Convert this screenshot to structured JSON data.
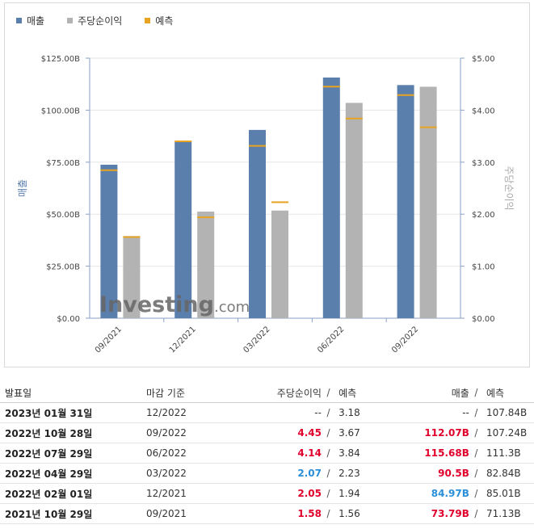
{
  "legend": [
    {
      "label": "매출",
      "color": "#5b7fad"
    },
    {
      "label": "주당순이익",
      "color": "#b3b3b3"
    },
    {
      "label": "예측",
      "color": "#e8a420"
    }
  ],
  "chart_data": {
    "type": "bar",
    "categories": [
      "09/2021",
      "12/2021",
      "03/2022",
      "06/2022",
      "09/2022"
    ],
    "series": [
      {
        "name": "매출",
        "axis": "left",
        "values": [
          73.79,
          84.97,
          90.5,
          115.68,
          112.07
        ],
        "forecast": [
          71.13,
          85.01,
          82.84,
          111.3,
          107.24
        ],
        "color": "#5b7fad"
      },
      {
        "name": "주당순이익",
        "axis": "right",
        "values": [
          1.58,
          2.05,
          2.07,
          4.14,
          4.45
        ],
        "forecast": [
          1.56,
          1.94,
          2.23,
          3.84,
          3.67
        ],
        "color": "#b3b3b3"
      }
    ],
    "forecast_color": "#e8a420",
    "ylabel_left": "매출",
    "ylabel_right": "주당순이익",
    "ylim_left": [
      0,
      125
    ],
    "ylim_right": [
      0,
      5
    ],
    "yticks_left": [
      "$0.00",
      "$25.00B",
      "$50.00B",
      "$75.00B",
      "$100.00B",
      "$125.00B"
    ],
    "yticks_right": [
      "$0.00",
      "$1.00",
      "$2.00",
      "$3.00",
      "$4.00",
      "$5.00"
    ],
    "grid": true
  },
  "watermark": {
    "brand": "Investing",
    "suffix": ".com"
  },
  "table": {
    "headers": {
      "date": "발표일",
      "period": "마감 기준",
      "eps": "주당순이익",
      "slash": "/",
      "eps_forecast": "예측",
      "revenue": "매출",
      "revenue_forecast": "예측"
    },
    "rows": [
      {
        "date": "2023년 01월 31일",
        "period": "12/2022",
        "eps": "--",
        "eps_forecast": "3.18",
        "revenue": "--",
        "revenue_forecast": "107.84B",
        "eps_color": "neutral",
        "rev_color": "neutral"
      },
      {
        "date": "2022년 10월 28일",
        "period": "09/2022",
        "eps": "4.45",
        "eps_forecast": "3.67",
        "revenue": "112.07B",
        "revenue_forecast": "107.24B",
        "eps_color": "red",
        "rev_color": "red"
      },
      {
        "date": "2022년 07월 29일",
        "period": "06/2022",
        "eps": "4.14",
        "eps_forecast": "3.84",
        "revenue": "115.68B",
        "revenue_forecast": "111.3B",
        "eps_color": "red",
        "rev_color": "red"
      },
      {
        "date": "2022년 04월 29일",
        "period": "03/2022",
        "eps": "2.07",
        "eps_forecast": "2.23",
        "revenue": "90.5B",
        "revenue_forecast": "82.84B",
        "eps_color": "blue",
        "rev_color": "red"
      },
      {
        "date": "2022년 02월 01일",
        "period": "12/2021",
        "eps": "2.05",
        "eps_forecast": "1.94",
        "revenue": "84.97B",
        "revenue_forecast": "85.01B",
        "eps_color": "red",
        "rev_color": "blue"
      },
      {
        "date": "2021년 10월 29일",
        "period": "09/2021",
        "eps": "1.58",
        "eps_forecast": "1.56",
        "revenue": "73.79B",
        "revenue_forecast": "71.13B",
        "eps_color": "red",
        "rev_color": "red"
      }
    ]
  }
}
